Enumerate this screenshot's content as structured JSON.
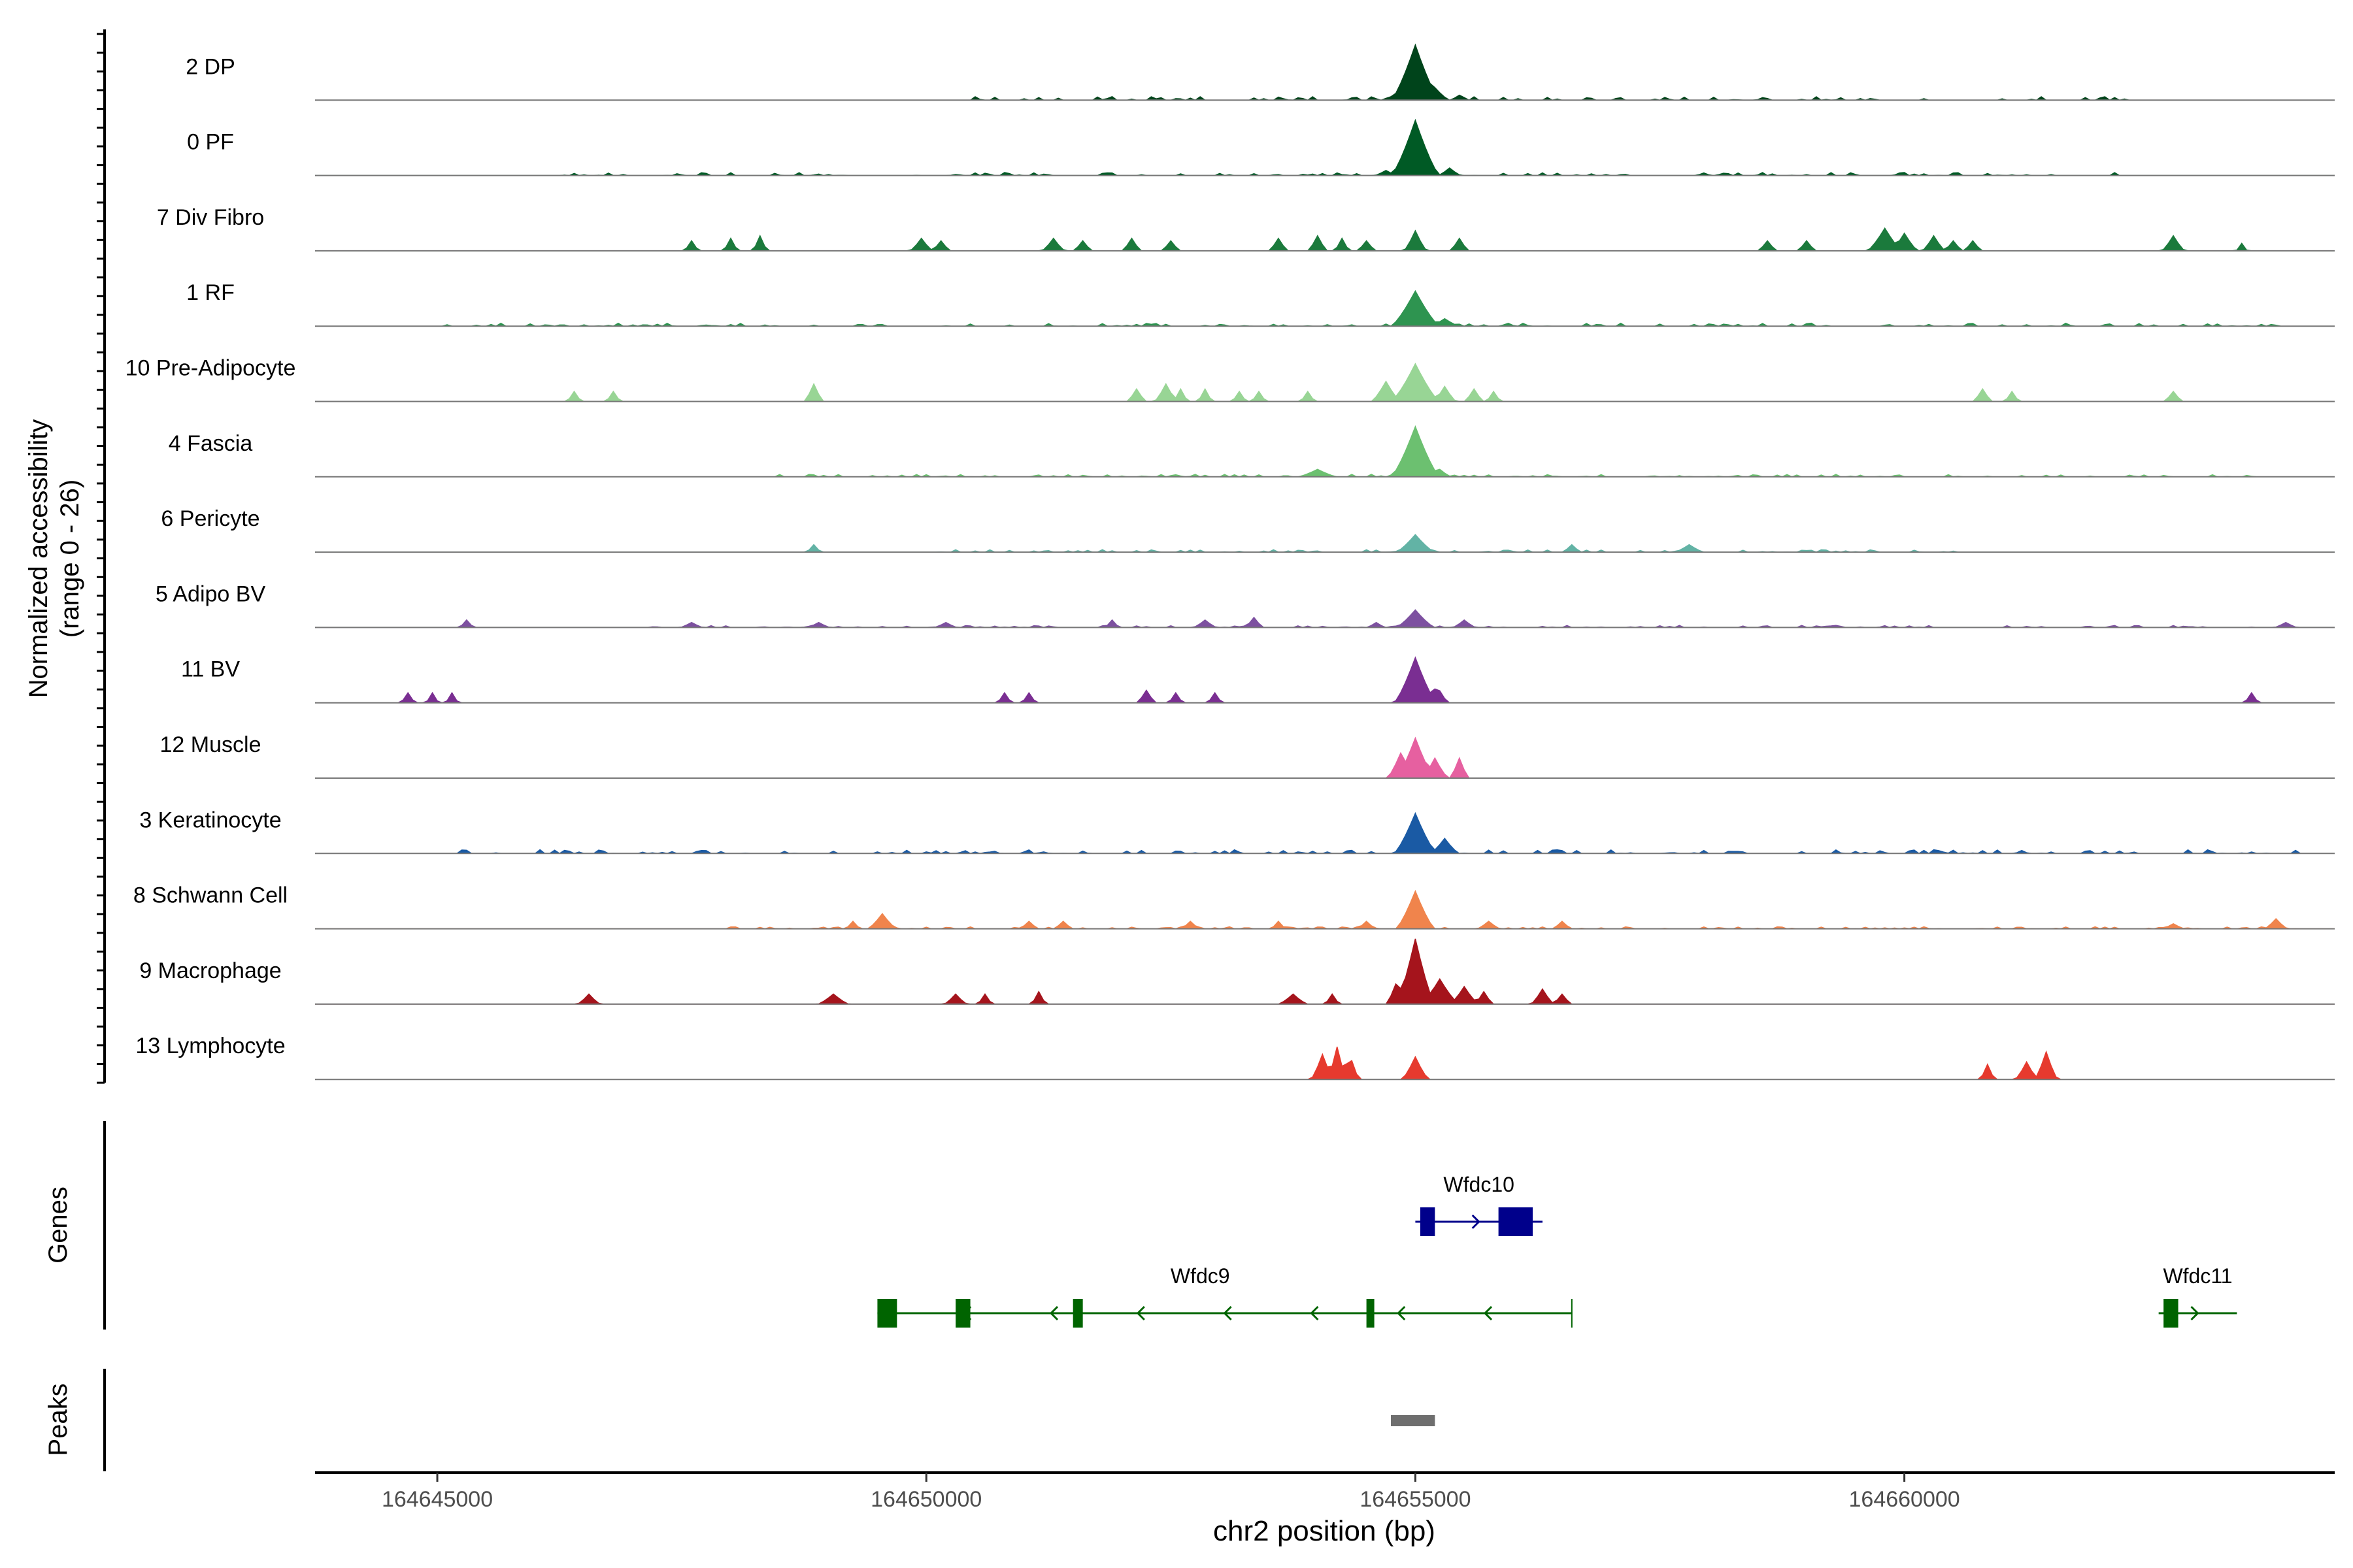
{
  "chart_data": {
    "type": "area",
    "xlabel": "chr2 position (bp)",
    "ylabel": "Normalized accessibility",
    "ylabel_sub": "(range 0 - 26)",
    "xlim": [
      164643750,
      164664400
    ],
    "ylim": [
      0,
      26
    ],
    "x_ticks": [
      164645000,
      164650000,
      164655000,
      164660000
    ],
    "x_tick_labels": [
      "164645000",
      "164650000",
      "164655000",
      "164660000"
    ],
    "track_labels": {
      "genes": "Genes",
      "peaks": "Peaks"
    },
    "series": [
      {
        "name": "2 DP",
        "color": "#00441b",
        "peaks": [
          [
            164655000,
            22,
            250
          ],
          [
            164655200,
            5,
            150
          ],
          [
            164655450,
            2,
            100
          ]
        ],
        "noise": [
          [
            164650500,
            164662300,
            1.5
          ]
        ]
      },
      {
        "name": "0 PF",
        "color": "#005a25",
        "peaks": [
          [
            164655000,
            22,
            250
          ],
          [
            164654700,
            2,
            120
          ],
          [
            164655350,
            3,
            120
          ]
        ],
        "noise": [
          [
            164646300,
            164662300,
            1.2
          ]
        ]
      },
      {
        "name": "7 Div Fibro",
        "color": "#1b7a3c",
        "peaks": [
          [
            164647600,
            4,
            80
          ],
          [
            164648000,
            5,
            80
          ],
          [
            164648300,
            6,
            80
          ],
          [
            164649950,
            5,
            120
          ],
          [
            164650150,
            4,
            100
          ],
          [
            164651300,
            5,
            120
          ],
          [
            164651600,
            4,
            100
          ],
          [
            164652100,
            5,
            100
          ],
          [
            164652500,
            4,
            100
          ],
          [
            164653600,
            5,
            100
          ],
          [
            164654000,
            6,
            100
          ],
          [
            164654250,
            5,
            80
          ],
          [
            164654500,
            4,
            100
          ],
          [
            164655000,
            8,
            120
          ],
          [
            164655450,
            5,
            100
          ],
          [
            164658600,
            4,
            100
          ],
          [
            164659000,
            4,
            100
          ],
          [
            164659800,
            9,
            180
          ],
          [
            164660000,
            7,
            140
          ],
          [
            164660300,
            6,
            120
          ],
          [
            164660500,
            4,
            100
          ],
          [
            164660700,
            4,
            100
          ],
          [
            164662750,
            6,
            120
          ],
          [
            164663450,
            3,
            60
          ]
        ],
        "noise": []
      },
      {
        "name": "1 RF",
        "color": "#2e9450",
        "peaks": [
          [
            164655000,
            14,
            250
          ],
          [
            164655300,
            3,
            150
          ]
        ],
        "noise": [
          [
            164645000,
            164664000,
            1.2
          ]
        ]
      },
      {
        "name": "10 Pre-Adipocyte",
        "color": "#98d595",
        "peaks": [
          [
            164646400,
            4,
            80
          ],
          [
            164646800,
            4,
            80
          ],
          [
            164648850,
            7,
            100
          ],
          [
            164652150,
            5,
            100
          ],
          [
            164652450,
            7,
            120
          ],
          [
            164652600,
            5,
            80
          ],
          [
            164652850,
            5,
            80
          ],
          [
            164653200,
            4,
            80
          ],
          [
            164653400,
            4,
            80
          ],
          [
            164653900,
            4,
            80
          ],
          [
            164654700,
            8,
            150
          ],
          [
            164655000,
            15,
            250
          ],
          [
            164655300,
            6,
            120
          ],
          [
            164655600,
            5,
            100
          ],
          [
            164655800,
            4,
            80
          ],
          [
            164660800,
            5,
            100
          ],
          [
            164661100,
            4,
            80
          ],
          [
            164662750,
            4,
            100
          ]
        ],
        "noise": []
      },
      {
        "name": "4 Fascia",
        "color": "#6cc070",
        "peaks": [
          [
            164655000,
            20,
            250
          ],
          [
            164654000,
            3,
            200
          ],
          [
            164655250,
            3,
            120
          ]
        ],
        "noise": [
          [
            164648500,
            164664000,
            1.0
          ]
        ]
      },
      {
        "name": "6 Pericyte",
        "color": "#62b3a5",
        "peaks": [
          [
            164655000,
            7,
            200
          ],
          [
            164648850,
            3,
            80
          ],
          [
            164656600,
            3,
            100
          ],
          [
            164657800,
            3,
            150
          ]
        ],
        "noise": [
          [
            164650000,
            164660500,
            1.0
          ]
        ]
      },
      {
        "name": "5 Adipo BV",
        "color": "#7d50a0",
        "peaks": [
          [
            164655000,
            7,
            200
          ],
          [
            164653350,
            4,
            100
          ],
          [
            164652850,
            3,
            120
          ],
          [
            164645300,
            3,
            80
          ],
          [
            164647600,
            2,
            120
          ],
          [
            164648900,
            2,
            120
          ],
          [
            164650200,
            2,
            120
          ],
          [
            164651900,
            3,
            80
          ],
          [
            164654600,
            2,
            100
          ],
          [
            164655500,
            3,
            120
          ],
          [
            164663900,
            2,
            120
          ]
        ],
        "noise": [
          [
            164647000,
            164664000,
            0.8
          ]
        ]
      },
      {
        "name": "11 BV",
        "color": "#7a2e92",
        "peaks": [
          [
            164644700,
            4,
            80
          ],
          [
            164644950,
            4,
            70
          ],
          [
            164645150,
            4,
            70
          ],
          [
            164650800,
            4,
            80
          ],
          [
            164651050,
            4,
            80
          ],
          [
            164652250,
            5,
            100
          ],
          [
            164652550,
            4,
            80
          ],
          [
            164652950,
            4,
            80
          ],
          [
            164655000,
            18,
            220
          ],
          [
            164655220,
            7,
            120
          ],
          [
            164663550,
            4,
            80
          ]
        ],
        "noise": []
      },
      {
        "name": "12 Muscle",
        "color": "#e660a0",
        "peaks": [
          [
            164654850,
            10,
            140
          ],
          [
            164655000,
            16,
            200
          ],
          [
            164655200,
            8,
            140
          ],
          [
            164655450,
            8,
            100
          ]
        ],
        "noise": []
      },
      {
        "name": "3 Keratinocyte",
        "color": "#1a5aa4",
        "peaks": [
          [
            164655000,
            16,
            220
          ],
          [
            164655300,
            6,
            150
          ]
        ],
        "noise": [
          [
            164645200,
            164664000,
            1.5
          ]
        ]
      },
      {
        "name": "8 Schwann Cell",
        "color": "#f0844c",
        "peaks": [
          [
            164655000,
            15,
            200
          ],
          [
            164649550,
            6,
            150
          ],
          [
            164649250,
            3,
            80
          ],
          [
            164651050,
            3,
            100
          ],
          [
            164651400,
            3,
            100
          ],
          [
            164652700,
            3,
            100
          ],
          [
            164653600,
            3,
            80
          ],
          [
            164654500,
            3,
            100
          ],
          [
            164655750,
            3,
            120
          ],
          [
            164656500,
            3,
            100
          ],
          [
            164662750,
            2,
            120
          ],
          [
            164663800,
            4,
            120
          ]
        ],
        "noise": [
          [
            164648000,
            164664000,
            0.8
          ]
        ]
      },
      {
        "name": "9 Macrophage",
        "color": "#a5141c",
        "peaks": [
          [
            164646550,
            4,
            120
          ],
          [
            164649050,
            4,
            160
          ],
          [
            164650300,
            4,
            120
          ],
          [
            164650600,
            4,
            80
          ],
          [
            164651150,
            5,
            80
          ],
          [
            164653750,
            4,
            150
          ],
          [
            164654150,
            4,
            80
          ],
          [
            164654800,
            8,
            100
          ],
          [
            164654900,
            9,
            200
          ],
          [
            164655000,
            26,
            200
          ],
          [
            164655250,
            10,
            200
          ],
          [
            164655500,
            7,
            150
          ],
          [
            164655700,
            5,
            100
          ],
          [
            164656300,
            6,
            120
          ],
          [
            164656500,
            4,
            100
          ]
        ],
        "noise": []
      },
      {
        "name": "13 Lymphocyte",
        "color": "#e63a2e",
        "peaks": [
          [
            164654050,
            10,
            120
          ],
          [
            164654200,
            13,
            100
          ],
          [
            164654330,
            10,
            100
          ],
          [
            164655000,
            9,
            140
          ],
          [
            164660850,
            6,
            80
          ],
          [
            164661250,
            7,
            120
          ],
          [
            164661450,
            11,
            120
          ]
        ],
        "noise": []
      }
    ],
    "genes": [
      {
        "name": "Wfdc10",
        "color": "#00008b",
        "start": 164655000,
        "end": 164656300,
        "strand": "+",
        "exons": [
          [
            164655050,
            164655200
          ],
          [
            164655850,
            164656200
          ]
        ]
      },
      {
        "name": "Wfdc9",
        "color": "#006400",
        "start": 164649500,
        "end": 164656600,
        "strand": "-",
        "exons": [
          [
            164649500,
            164649700
          ],
          [
            164650300,
            164650450
          ],
          [
            164651500,
            164651600
          ],
          [
            164654500,
            164654580
          ]
        ]
      },
      {
        "name": "Wfdc11",
        "color": "#006400",
        "start": 164662600,
        "end": 164663400,
        "strand": "+",
        "exons": [
          [
            164662650,
            164662800
          ]
        ]
      }
    ],
    "peaks_track": [
      {
        "start": 164654750,
        "end": 164655200
      }
    ]
  }
}
